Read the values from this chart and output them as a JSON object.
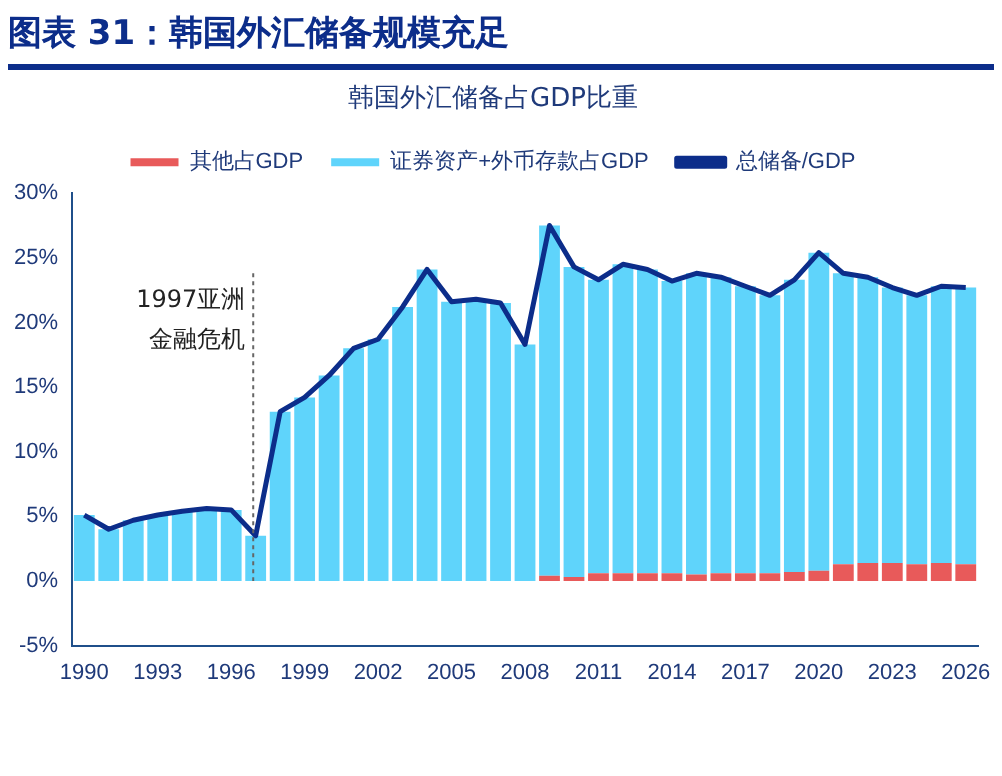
{
  "chart_data": {
    "type": "bar",
    "title": "图表 31：韩国外汇储备规模充足",
    "subtitle": "韩国外汇储备占GDP比重",
    "x": [
      1990,
      1991,
      1992,
      1993,
      1994,
      1995,
      1996,
      1997,
      1998,
      1999,
      2000,
      2001,
      2002,
      2003,
      2004,
      2005,
      2006,
      2007,
      2008,
      2009,
      2010,
      2011,
      2012,
      2013,
      2014,
      2015,
      2016,
      2017,
      2018,
      2019,
      2020,
      2021,
      2022,
      2023,
      2024,
      2025,
      2026
    ],
    "xlim": [
      1989.5,
      2026.5
    ],
    "xticks": [
      1990,
      1993,
      1996,
      1999,
      2002,
      2005,
      2008,
      2011,
      2014,
      2017,
      2020,
      2023,
      2026
    ],
    "ylim": [
      -5,
      30
    ],
    "yticks": [
      {
        "value": -5,
        "label": "-5%"
      },
      {
        "value": 0,
        "label": "0%"
      },
      {
        "value": 5,
        "label": "5%"
      },
      {
        "value": 10,
        "label": "10%"
      },
      {
        "value": 15,
        "label": "15%"
      },
      {
        "value": 20,
        "label": "20%"
      },
      {
        "value": 25,
        "label": "25%"
      },
      {
        "value": 30,
        "label": "30%"
      }
    ],
    "stacked": true,
    "grid": false,
    "legend": "top",
    "series": [
      {
        "name": "其他占GDP",
        "color": "#e85a5a",
        "values": [
          0,
          0,
          0,
          0,
          0,
          0,
          0,
          0,
          0,
          0,
          0,
          0,
          0,
          0,
          0,
          0,
          0,
          0,
          0,
          0.4,
          0.3,
          0.6,
          0.6,
          0.6,
          0.6,
          0.5,
          0.6,
          0.6,
          0.6,
          0.7,
          0.8,
          1.3,
          1.4,
          1.4,
          1.3,
          1.4,
          1.3
        ]
      },
      {
        "name": "证券资产+外币存款占GDP",
        "color": "#5fd4fb",
        "values": [
          5.1,
          4.0,
          4.7,
          5.1,
          5.4,
          5.6,
          5.5,
          3.5,
          13.1,
          14.2,
          15.9,
          18.0,
          18.7,
          21.2,
          24.1,
          21.6,
          21.8,
          21.5,
          18.3,
          27.1,
          24.0,
          22.7,
          23.9,
          23.5,
          22.6,
          23.3,
          22.9,
          22.2,
          21.5,
          22.6,
          24.6,
          22.5,
          22.1,
          21.3,
          20.8,
          21.4,
          21.4
        ]
      },
      {
        "name": "总储备/GDP",
        "type": "line",
        "color": "#0c2d8a",
        "values": [
          5.1,
          4.0,
          4.7,
          5.1,
          5.4,
          5.6,
          5.5,
          3.5,
          13.1,
          14.2,
          15.9,
          18.0,
          18.7,
          21.2,
          24.1,
          21.6,
          21.8,
          21.5,
          18.3,
          27.5,
          24.3,
          23.3,
          24.5,
          24.1,
          23.2,
          23.8,
          23.5,
          22.8,
          22.1,
          23.3,
          25.4,
          23.8,
          23.5,
          22.7,
          22.1,
          22.8,
          22.7
        ]
      }
    ],
    "ref_lines": [
      {
        "axis": "x",
        "value": 1996.9,
        "label": "1997亚洲金融危机",
        "color": "#666666",
        "line_style": "dotted"
      }
    ]
  }
}
